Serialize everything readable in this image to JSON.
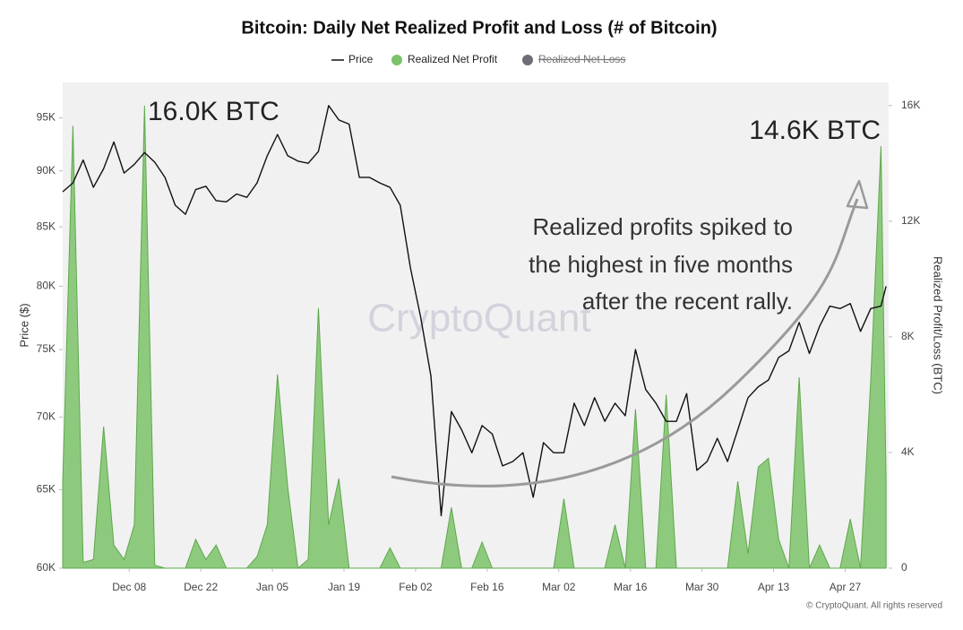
{
  "chart_data": {
    "type": "line-area",
    "title": "Bitcoin: Daily Net Realized Profit and Loss (# of Bitcoin)",
    "x": [
      0,
      2,
      4,
      6,
      8,
      10,
      12,
      14,
      16,
      18,
      20,
      22,
      24,
      26,
      28,
      30,
      32,
      34,
      36,
      38,
      40,
      42,
      44,
      46,
      48,
      50,
      52,
      54,
      56,
      58,
      60,
      62,
      64,
      66,
      68,
      70,
      72,
      74,
      76,
      78,
      80,
      82,
      84,
      86,
      88,
      90,
      92,
      94,
      96,
      98,
      100,
      102,
      104,
      106,
      108,
      110,
      112,
      114,
      116,
      118,
      120,
      122,
      124,
      126,
      128,
      130,
      132,
      134,
      136,
      138,
      140,
      142,
      144,
      146,
      148,
      150,
      152,
      154,
      156,
      158,
      160,
      161
    ],
    "xlim": [
      0,
      161.5
    ],
    "xticks": [
      {
        "value": 13,
        "label": "Dec 08"
      },
      {
        "value": 27,
        "label": "Dec 22"
      },
      {
        "value": 41,
        "label": "Jan 05"
      },
      {
        "value": 55,
        "label": "Jan 19"
      },
      {
        "value": 69,
        "label": "Feb 02"
      },
      {
        "value": 83,
        "label": "Feb 16"
      },
      {
        "value": 97,
        "label": "Mar 02"
      },
      {
        "value": 111,
        "label": "Mar 16"
      },
      {
        "value": 125,
        "label": "Mar 30"
      },
      {
        "value": 139,
        "label": "Apr 13"
      },
      {
        "value": 153,
        "label": "Apr 27"
      }
    ],
    "ylabel": "Price ($)",
    "ylim": [
      60000,
      98500
    ],
    "ylog": true,
    "yticks": [
      {
        "value": 60000,
        "label": "60K"
      },
      {
        "value": 65000,
        "label": "65K"
      },
      {
        "value": 70000,
        "label": "70K"
      },
      {
        "value": 75000,
        "label": "75K"
      },
      {
        "value": 80000,
        "label": "80K"
      },
      {
        "value": 85000,
        "label": "85K"
      },
      {
        "value": 90000,
        "label": "90K"
      },
      {
        "value": 95000,
        "label": "95K"
      }
    ],
    "y2label": "Realized Profit/Loss (BTC)",
    "y2lim": [
      0,
      16800
    ],
    "y2ticks": [
      0,
      {
        "value": 4000,
        "label": "4K"
      },
      {
        "value": 8000,
        "label": "8K"
      },
      {
        "value": 12000,
        "label": "12K"
      },
      {
        "value": 16000,
        "label": "16K"
      }
    ],
    "series": [
      {
        "name": "Price",
        "color": "#111111",
        "kind": "line",
        "values": [
          88100,
          88900,
          91000,
          88500,
          90200,
          92700,
          89800,
          90600,
          91700,
          90800,
          89400,
          86900,
          86100,
          88300,
          88600,
          87300,
          87200,
          87900,
          87600,
          88900,
          91400,
          93400,
          91400,
          90900,
          90700,
          91800,
          96200,
          94800,
          94400,
          89400,
          89400,
          88900,
          88500,
          86900,
          81500,
          77500,
          73000,
          63300,
          70400,
          69100,
          67500,
          69400,
          68800,
          66600,
          66900,
          67500,
          64500,
          68200,
          67500,
          67500,
          71000,
          69400,
          71400,
          69700,
          71000,
          70100,
          75000,
          72000,
          71000,
          69700,
          69700,
          71700,
          66300,
          66900,
          68500,
          66900,
          69100,
          71400,
          72200,
          72700,
          74400,
          74900,
          77100,
          74700,
          76800,
          78400,
          78200,
          78600,
          76400,
          78200,
          78400,
          80000
        ]
      },
      {
        "name": "Realized Net Profit",
        "color": "#7cc36a",
        "kind": "area",
        "axis": "y2",
        "values": [
          3000,
          15300,
          200,
          300,
          4900,
          800,
          300,
          1500,
          16000,
          100,
          0,
          0,
          0,
          1000,
          300,
          800,
          0,
          0,
          0,
          400,
          1500,
          6700,
          2800,
          0,
          300,
          9000,
          1500,
          3100,
          0,
          0,
          0,
          0,
          700,
          0,
          0,
          0,
          0,
          0,
          2100,
          0,
          0,
          900,
          0,
          0,
          0,
          0,
          0,
          0,
          0,
          2400,
          0,
          0,
          0,
          0,
          1500,
          0,
          5500,
          0,
          0,
          6000,
          0,
          0,
          0,
          0,
          0,
          0,
          3000,
          500,
          3500,
          3800,
          1000,
          0,
          6600,
          0,
          800,
          0,
          0,
          1700,
          0,
          6500,
          14600,
          3000
        ]
      },
      {
        "name": "Realized Net Loss",
        "color": "#6e6e78",
        "kind": "area",
        "axis": "y2",
        "hidden": true
      }
    ],
    "annotations": [
      "16.0K BTC",
      "14.6K BTC"
    ],
    "note": [
      "Realized profits spiked to",
      "the highest in five months",
      "after the recent rally."
    ],
    "watermark": "CryptoQuant",
    "credit": "© CryptoQuant. All rights reserved"
  }
}
